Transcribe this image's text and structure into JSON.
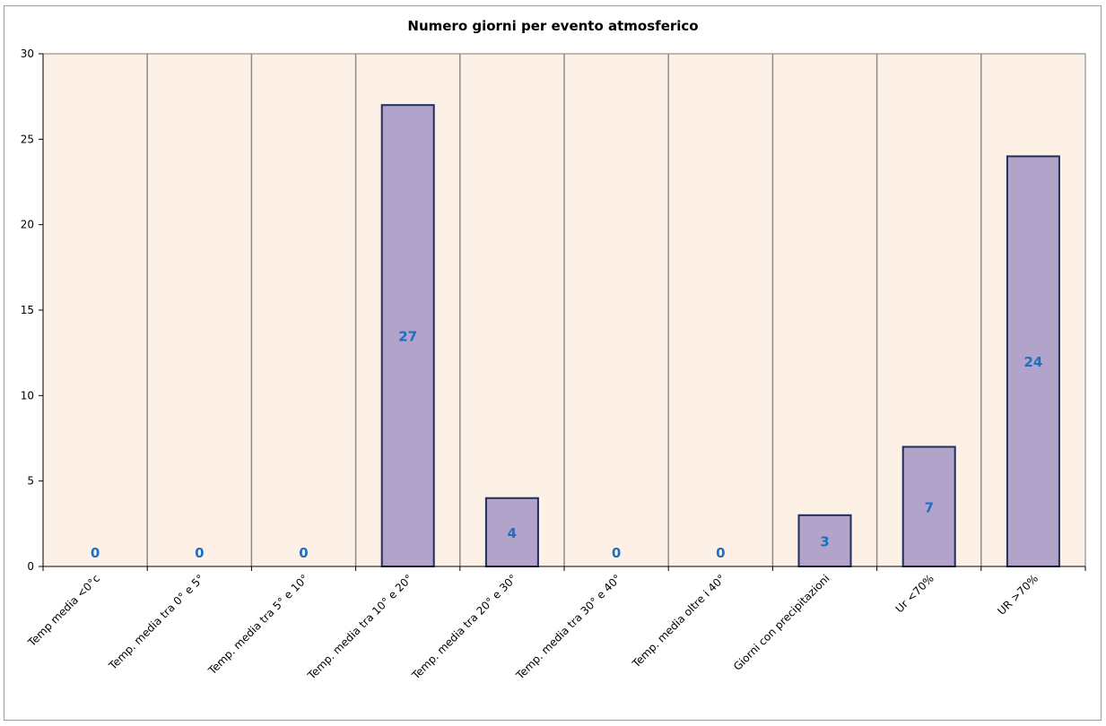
{
  "chart_data": {
    "type": "bar",
    "title": "Numero giorni  per evento atmosferico",
    "xlabel": "",
    "ylabel": "",
    "ylim": [
      0,
      30
    ],
    "yticks": [
      "0",
      "5",
      "10",
      "15",
      "20",
      "25",
      "30"
    ],
    "categories": [
      "Temp media <0°c",
      "Temp. media tra 0° e 5°",
      "Temp. media tra 5° e 10°",
      "Temp. media tra 10° e 20°",
      "Temp. media tra 20° e 30°",
      "Temp. media tra 30° e 40°",
      "Temp. media oltre i 40°",
      "Giorni con precipitazioni",
      "Ur  <70%",
      "UR >70%"
    ],
    "values": [
      0,
      0,
      0,
      27,
      4,
      0,
      0,
      3,
      7,
      24
    ],
    "grid": true,
    "legend": "none",
    "colors": {
      "bar_fill": "#b1a3c9",
      "bar_stroke": "#1f2f5a",
      "plot_bg": "#fdf1e7",
      "gridline": "#8c8c8c",
      "data_label": "#1f6fc0"
    }
  }
}
